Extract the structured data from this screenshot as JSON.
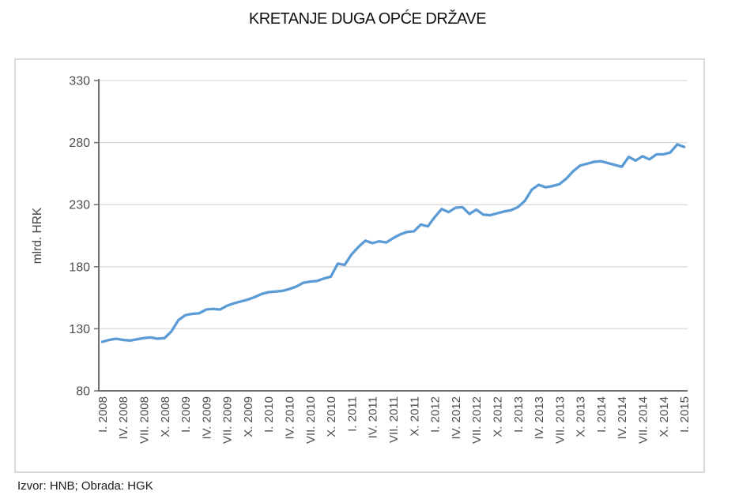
{
  "page": {
    "title": "KRETANJE DUGA OPĆE DRŽAVE",
    "source": "Izvor: HNB; Obrada: HGK"
  },
  "chart_data": {
    "type": "line",
    "title": "KRETANJE DUGA OPĆE DRŽAVE",
    "xlabel": "",
    "ylabel": "mlrd. HRK",
    "ylim": [
      80,
      330
    ],
    "yticks": [
      80,
      130,
      180,
      230,
      280,
      330
    ],
    "grid": "horizontal",
    "legend": "none",
    "x_tick_labels": [
      "I. 2008",
      "IV. 2008",
      "VII. 2008",
      "X. 2008",
      "I. 2009",
      "IV. 2009",
      "VII. 2009",
      "X. 2009",
      "I. 2010",
      "IV. 2010",
      "VII. 2010",
      "X. 2010",
      "I. 2011",
      "IV. 2011",
      "VII. 2011",
      "X. 2011",
      "I. 2012",
      "IV. 2012",
      "VII. 2012",
      "X. 2012",
      "I. 2013",
      "IV. 2013",
      "VII. 2013",
      "X. 2013",
      "I. 2014",
      "IV. 2014",
      "VII. 2014",
      "X. 2014",
      "I. 2015"
    ],
    "x_tick_interval_months": 3,
    "series": [
      {
        "color": "#5B9BD5",
        "start": "I. 2008",
        "end": "I. 2015",
        "frequency": "monthly",
        "values": [
          119.5,
          121,
          122,
          121,
          120.5,
          121.5,
          122.5,
          123,
          122,
          122.5,
          128,
          137,
          141,
          142,
          142.5,
          145.5,
          146,
          145.5,
          148.5,
          150.5,
          152,
          153.5,
          155.5,
          158,
          159.5,
          160,
          160.5,
          162,
          164,
          167,
          168,
          168.5,
          170.5,
          172,
          182.5,
          181.5,
          190,
          196,
          201,
          199,
          200.5,
          199.5,
          203,
          206,
          208,
          208.5,
          214,
          212.5,
          220,
          226.5,
          224,
          227.5,
          228,
          222.5,
          226,
          222,
          221.5,
          223,
          224.5,
          225.5,
          228,
          233,
          242,
          246,
          244,
          245,
          246.5,
          251,
          257,
          261.5,
          263,
          264.5,
          265,
          263.5,
          262,
          260.5,
          268.5,
          265.5,
          269,
          266.5,
          270.5,
          270.5,
          272,
          278.5,
          276.5
        ]
      }
    ]
  },
  "colors": {
    "line": "#5B9BD5",
    "gridline": "#D9D9D9",
    "axis": "#6F6F6F",
    "tick_label": "#4D4D4D",
    "axis_title": "#444444",
    "card_border": "#D9D9D9"
  }
}
